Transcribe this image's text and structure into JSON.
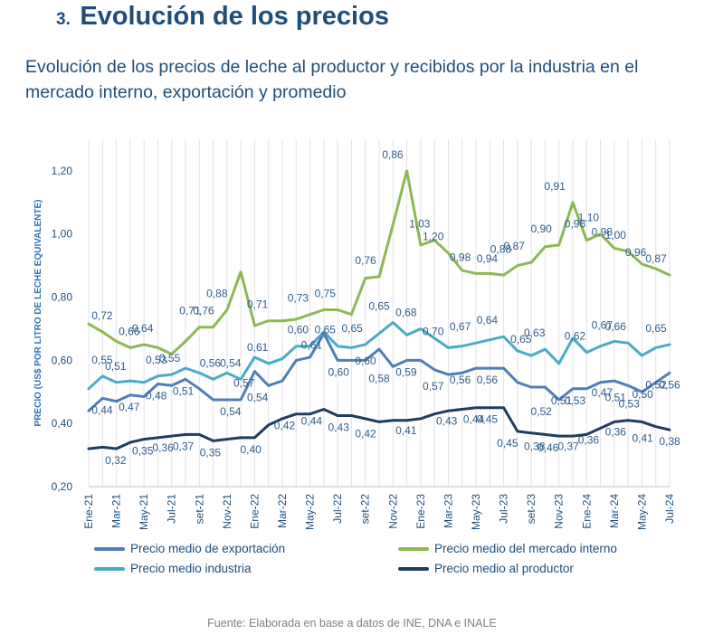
{
  "header": {
    "number": "3.",
    "title": "Evolución de los precios"
  },
  "subtitle": "Evolución de los precios de leche al productor y recibidos por la industria en el mercado interno, exportación y promedio",
  "source": "Fuente: Elaborada en base a datos de INE, DNA e INALE",
  "chart_data": {
    "type": "line",
    "ylabel": "PRECIO (US$ POR LITRO DE LECHE EQUIVALENTE)",
    "ylim": [
      0.2,
      1.3
    ],
    "yticks": [
      "0,20",
      "0,40",
      "0,60",
      "0,80",
      "1,00",
      "1,20"
    ],
    "grid": true,
    "legend_position": "bottom",
    "xticks": [
      "Ene-21",
      "Mar-21",
      "May-21",
      "Jul-21",
      "set-21",
      "Nov-21",
      "Ene-22",
      "Mar-22",
      "May-22",
      "Jul-22",
      "set-22",
      "Nov-22",
      "Ene-23",
      "Mar-23",
      "May-23",
      "Jul-23",
      "set-23",
      "Nov-23",
      "Ene-24",
      "Mar-24",
      "May-24",
      "Jul-24"
    ],
    "series": [
      {
        "name": "Precio medio del mercado interno",
        "color": "#8db854",
        "values": [
          0.715,
          0.69,
          0.66,
          0.64,
          0.65,
          0.64,
          0.62,
          0.66,
          0.705,
          0.705,
          0.76,
          0.88,
          0.71,
          0.725,
          0.725,
          0.73,
          0.745,
          0.76,
          0.76,
          0.745,
          0.86,
          0.865,
          1.03,
          1.2,
          0.965,
          0.98,
          0.94,
          0.885,
          0.875,
          0.875,
          0.87,
          0.9,
          0.91,
          0.96,
          0.965,
          1.1,
          0.98,
          1.0,
          0.955,
          0.945,
          0.905,
          0.89,
          0.87
        ]
      },
      {
        "name": "Precio medio industria",
        "color": "#4aacc6",
        "values": [
          0.51,
          0.55,
          0.53,
          0.535,
          0.53,
          0.55,
          0.555,
          0.575,
          0.56,
          0.54,
          0.56,
          0.54,
          0.61,
          0.59,
          0.605,
          0.645,
          0.645,
          0.69,
          0.645,
          0.64,
          0.65,
          0.685,
          0.72,
          0.68,
          0.7,
          0.67,
          0.64,
          0.645,
          0.655,
          0.665,
          0.675,
          0.63,
          0.615,
          0.635,
          0.59,
          0.67,
          0.625,
          0.645,
          0.66,
          0.655,
          0.615,
          0.64,
          0.65
        ]
      },
      {
        "name": "Precio medio de exportación",
        "color": "#4f7fb9",
        "values": [
          0.44,
          0.48,
          0.47,
          0.49,
          0.485,
          0.525,
          0.52,
          0.54,
          0.51,
          0.475,
          0.475,
          0.475,
          0.565,
          0.52,
          0.535,
          0.6,
          0.61,
          0.685,
          0.6,
          0.6,
          0.6,
          0.635,
          0.58,
          0.6,
          0.6,
          0.57,
          0.555,
          0.56,
          0.575,
          0.575,
          0.575,
          0.53,
          0.515,
          0.515,
          0.475,
          0.51,
          0.51,
          0.53,
          0.535,
          0.52,
          0.5,
          0.53,
          0.56
        ]
      },
      {
        "name": "Precio medio al productor",
        "color": "#1f3d5c",
        "values": [
          0.32,
          0.325,
          0.32,
          0.34,
          0.35,
          0.355,
          0.36,
          0.365,
          0.365,
          0.345,
          0.35,
          0.355,
          0.355,
          0.395,
          0.415,
          0.43,
          0.43,
          0.445,
          0.425,
          0.425,
          0.415,
          0.405,
          0.41,
          0.41,
          0.415,
          0.43,
          0.44,
          0.445,
          0.45,
          0.45,
          0.45,
          0.375,
          0.37,
          0.365,
          0.36,
          0.36,
          0.365,
          0.385,
          0.405,
          0.41,
          0.405,
          0.39,
          0.38
        ]
      }
    ],
    "data_labels": [
      {
        "series": 0,
        "i": 2,
        "text": "0,72"
      },
      {
        "series": 0,
        "i": 6,
        "text": "0,66"
      },
      {
        "series": 0,
        "i": 8,
        "text": "0,64"
      },
      {
        "series": 0,
        "i": 15,
        "text": "0,71"
      },
      {
        "series": 0,
        "i": 17,
        "text": "0,76"
      },
      {
        "series": 0,
        "i": 19,
        "text": "0,88"
      },
      {
        "series": 0,
        "i": 25,
        "text": "0,71"
      },
      {
        "series": 0,
        "i": 31,
        "text": "0,73"
      },
      {
        "series": 0,
        "i": 35,
        "text": "0,75"
      },
      {
        "series": 0,
        "i": 41,
        "text": "0,76"
      },
      {
        "series": 0,
        "i": 45,
        "text": "0,86"
      },
      {
        "series": 0,
        "i": 49,
        "text": "1,03"
      },
      {
        "series": 0,
        "i": 51,
        "text": "1,20"
      },
      {
        "series": 0,
        "i": 55,
        "text": "0,98"
      },
      {
        "series": 0,
        "i": 59,
        "text": "0,94"
      },
      {
        "series": 0,
        "i": 61,
        "text": "0,88"
      },
      {
        "series": 0,
        "i": 63,
        "text": "0,87"
      },
      {
        "series": 0,
        "i": 67,
        "text": "0,90"
      },
      {
        "series": 0,
        "i": 69,
        "text": "0,91"
      },
      {
        "series": 0,
        "i": 72,
        "text": "0,96"
      },
      {
        "series": 0,
        "i": 74,
        "text": "1,10"
      },
      {
        "series": 0,
        "i": 76,
        "text": "0,98"
      },
      {
        "series": 0,
        "i": 78,
        "text": "1,00"
      },
      {
        "series": 0,
        "i": 81,
        "text": "0,96"
      },
      {
        "series": 0,
        "i": 84,
        "text": "0,87"
      },
      {
        "series": 1,
        "i": 2,
        "text": "0,55"
      },
      {
        "series": 1,
        "i": 4,
        "text": "0,51"
      },
      {
        "series": 1,
        "i": 10,
        "text": "0,53"
      },
      {
        "series": 1,
        "i": 12,
        "text": "0,55"
      },
      {
        "series": 1,
        "i": 18,
        "text": "0,56"
      },
      {
        "series": 1,
        "i": 21,
        "text": "0,54"
      },
      {
        "series": 1,
        "i": 25,
        "text": "0,61"
      },
      {
        "series": 1,
        "i": 31,
        "text": "0,60"
      },
      {
        "series": 1,
        "i": 35,
        "text": "0,65"
      },
      {
        "series": 1,
        "i": 39,
        "text": "0,65"
      },
      {
        "series": 1,
        "i": 43,
        "text": "0,65"
      },
      {
        "series": 1,
        "i": 47,
        "text": "0,68"
      },
      {
        "series": 1,
        "i": 51,
        "text": "0,70"
      },
      {
        "series": 1,
        "i": 55,
        "text": "0,67"
      },
      {
        "series": 1,
        "i": 59,
        "text": "0,64"
      },
      {
        "series": 1,
        "i": 64,
        "text": "0,65"
      },
      {
        "series": 1,
        "i": 66,
        "text": "0,63"
      },
      {
        "series": 1,
        "i": 72,
        "text": "0,62"
      },
      {
        "series": 1,
        "i": 76,
        "text": "0,67"
      },
      {
        "series": 1,
        "i": 78,
        "text": "0,66"
      },
      {
        "series": 1,
        "i": 84,
        "text": "0,65"
      },
      {
        "series": 2,
        "i": 2,
        "text": "0,44"
      },
      {
        "series": 2,
        "i": 6,
        "text": "0,47"
      },
      {
        "series": 2,
        "i": 10,
        "text": "0,48"
      },
      {
        "series": 2,
        "i": 14,
        "text": "0,51"
      },
      {
        "series": 2,
        "i": 21,
        "text": "0,54"
      },
      {
        "series": 2,
        "i": 23,
        "text": "0,57"
      },
      {
        "series": 2,
        "i": 25,
        "text": "0,54"
      },
      {
        "series": 2,
        "i": 33,
        "text": "0,61"
      },
      {
        "series": 2,
        "i": 37,
        "text": "0,60"
      },
      {
        "series": 2,
        "i": 41,
        "text": "0,60"
      },
      {
        "series": 2,
        "i": 43,
        "text": "0,58"
      },
      {
        "series": 2,
        "i": 47,
        "text": "0,59"
      },
      {
        "series": 2,
        "i": 51,
        "text": "0,57"
      },
      {
        "series": 2,
        "i": 55,
        "text": "0,56"
      },
      {
        "series": 2,
        "i": 59,
        "text": "0,56"
      },
      {
        "series": 2,
        "i": 67,
        "text": "0,52"
      },
      {
        "series": 2,
        "i": 70,
        "text": "0,51"
      },
      {
        "series": 2,
        "i": 72,
        "text": "0,53"
      },
      {
        "series": 2,
        "i": 76,
        "text": "0,47"
      },
      {
        "series": 2,
        "i": 78,
        "text": "0,51"
      },
      {
        "series": 2,
        "i": 80,
        "text": "0,53"
      },
      {
        "series": 2,
        "i": 82,
        "text": "0,50"
      },
      {
        "series": 2,
        "i": 84,
        "text": "0,52"
      },
      {
        "series": 2,
        "i": 86,
        "text": "0,56"
      },
      {
        "series": 3,
        "i": 4,
        "text": "0,32"
      },
      {
        "series": 3,
        "i": 8,
        "text": "0,35"
      },
      {
        "series": 3,
        "i": 11,
        "text": "0,36"
      },
      {
        "series": 3,
        "i": 14,
        "text": "0,37"
      },
      {
        "series": 3,
        "i": 18,
        "text": "0,35"
      },
      {
        "series": 3,
        "i": 24,
        "text": "0,40"
      },
      {
        "series": 3,
        "i": 29,
        "text": "0,42"
      },
      {
        "series": 3,
        "i": 33,
        "text": "0,44"
      },
      {
        "series": 3,
        "i": 37,
        "text": "0,43"
      },
      {
        "series": 3,
        "i": 41,
        "text": "0,42"
      },
      {
        "series": 3,
        "i": 47,
        "text": "0,41"
      },
      {
        "series": 3,
        "i": 53,
        "text": "0,43"
      },
      {
        "series": 3,
        "i": 57,
        "text": "0,44"
      },
      {
        "series": 3,
        "i": 59,
        "text": "0,45"
      },
      {
        "series": 3,
        "i": 62,
        "text": "0,45"
      },
      {
        "series": 3,
        "i": 66,
        "text": "0,38"
      },
      {
        "series": 3,
        "i": 68,
        "text": "0,46"
      },
      {
        "series": 3,
        "i": 71,
        "text": "0,37"
      },
      {
        "series": 3,
        "i": 74,
        "text": "0,36"
      },
      {
        "series": 3,
        "i": 78,
        "text": "0,36"
      },
      {
        "series": 3,
        "i": 82,
        "text": "0,41"
      },
      {
        "series": 3,
        "i": 86,
        "text": "0,38"
      }
    ]
  },
  "legend": [
    {
      "label": "Precio medio de exportación",
      "color": "#4f7fb9"
    },
    {
      "label": "Precio medio del mercado interno",
      "color": "#8db854"
    },
    {
      "label": "Precio medio industria",
      "color": "#4aacc6"
    },
    {
      "label": "Precio medio al productor",
      "color": "#1f3d5c"
    }
  ]
}
